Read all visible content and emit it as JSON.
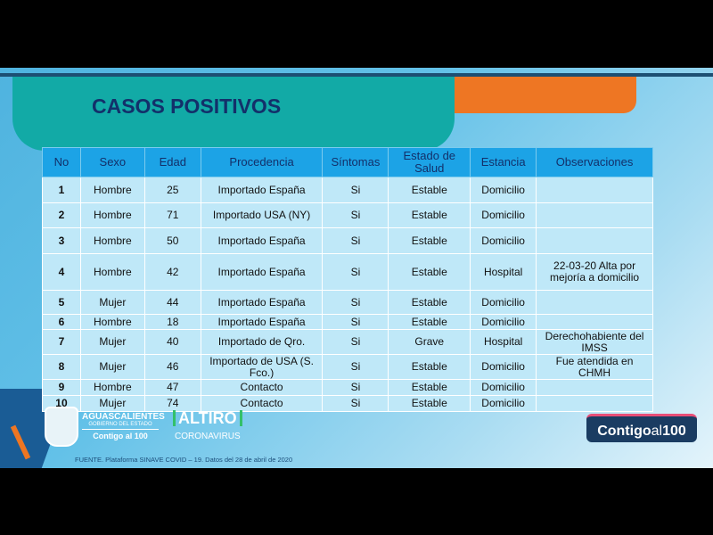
{
  "title": "CASOS POSITIVOS",
  "table": {
    "headers": [
      "No",
      "Sexo",
      "Edad",
      "Procedencia",
      "Síntomas",
      "Estado de Salud",
      "Estancia",
      "Observaciones"
    ],
    "rows": [
      [
        "1",
        "Hombre",
        "25",
        "Importado España",
        "Si",
        "Estable",
        "Domicilio",
        ""
      ],
      [
        "2",
        "Hombre",
        "71",
        "Importado USA (NY)",
        "Si",
        "Estable",
        "Domicilio",
        ""
      ],
      [
        "3",
        "Hombre",
        "50",
        "Importado España",
        "Si",
        "Estable",
        "Domicilio",
        ""
      ],
      [
        "4",
        "Hombre",
        "42",
        "Importado España",
        "Si",
        "Estable",
        "Hospital",
        "22-03-20 Alta por mejoría a domicilio"
      ],
      [
        "5",
        "Mujer",
        "44",
        "Importado España",
        "Si",
        "Estable",
        "Domicilio",
        ""
      ],
      [
        "6",
        "Hombre",
        "18",
        "Importado España",
        "Si",
        "Estable",
        "Domicilio",
        ""
      ],
      [
        "7",
        "Mujer",
        "40",
        "Importado de Qro.",
        "Si",
        "Grave",
        "Hospital",
        "Derechohabiente del IMSS"
      ],
      [
        "8",
        "Mujer",
        "46",
        "Importado de USA (S. Fco.)",
        "Si",
        "Estable",
        "Domicilio",
        "Fue atendida en CHMH"
      ],
      [
        "9",
        "Hombre",
        "47",
        "Contacto",
        "Si",
        "Estable",
        "Domicilio",
        ""
      ],
      [
        "10",
        "Mujer",
        "74",
        "Contacto",
        "Si",
        "Estable",
        "Domicilio",
        ""
      ]
    ]
  },
  "footer": {
    "gov_name": "AGUASCALIENTES",
    "gov_sub": "GOBIERNO DEL ESTADO",
    "gov_slogan": "Contigo al 100",
    "altiro": "ALTIRO",
    "altiro_sub": "CORONAVIRUS",
    "source": "FUENTE. Plataforma SINAVE COVID – 19. Datos del 28 de abril de 2020",
    "badge_a": "Contigo",
    "badge_b": "al",
    "badge_c": "100"
  }
}
